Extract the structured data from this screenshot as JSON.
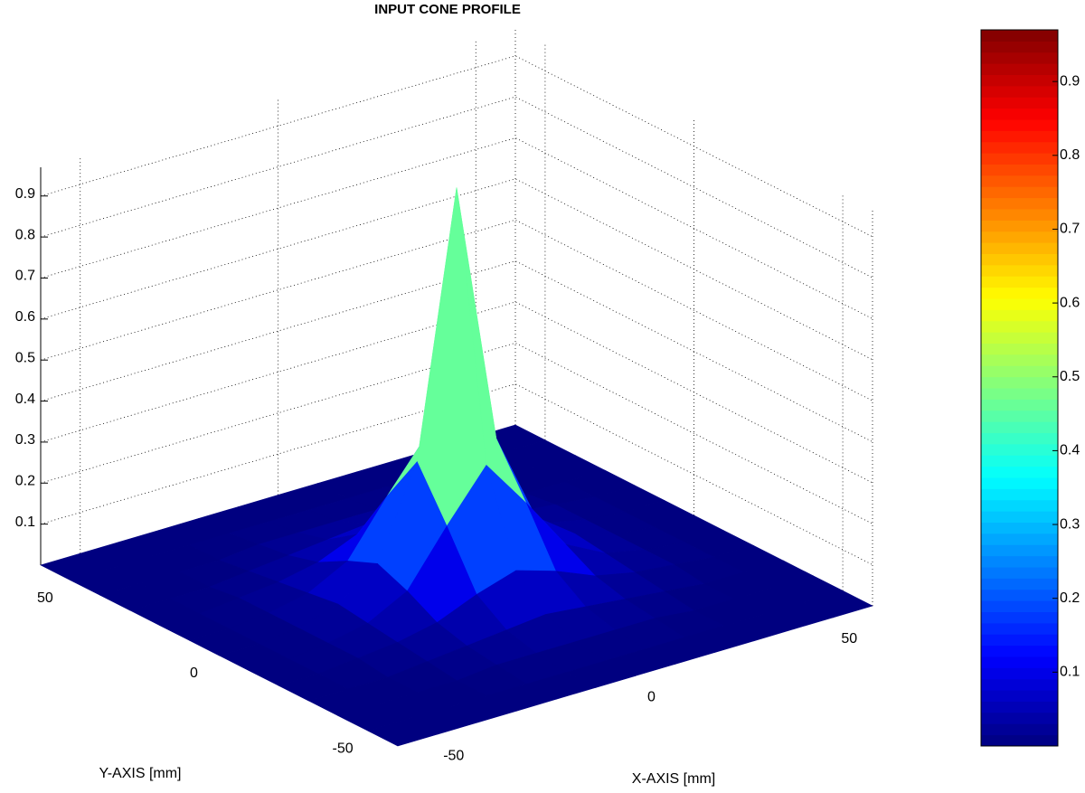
{
  "chart_data": {
    "type": "surface",
    "title": "INPUT CONE PROFILE",
    "x_label": "X-AXIS [mm]",
    "y_label": "Y-AXIS [mm]",
    "x": [
      -60,
      -50,
      -40,
      -30,
      -20,
      -10,
      0,
      10,
      20,
      30,
      40,
      50,
      60
    ],
    "y": [
      -60,
      -50,
      -40,
      -30,
      -20,
      -10,
      0,
      10,
      20,
      30,
      40,
      50,
      60
    ],
    "z": [
      [
        0,
        0,
        0,
        0,
        0,
        0,
        0,
        0,
        0,
        0,
        0,
        0,
        0
      ],
      [
        0,
        0,
        0,
        0,
        0,
        0,
        0,
        0,
        0,
        0,
        0,
        0,
        0
      ],
      [
        0,
        0,
        0,
        0,
        0.01,
        0.01,
        0.01,
        0.01,
        0.01,
        0,
        0,
        0,
        0
      ],
      [
        0,
        0,
        0,
        0.01,
        0.02,
        0.03,
        0.04,
        0.03,
        0.02,
        0.01,
        0,
        0,
        0
      ],
      [
        0,
        0,
        0.01,
        0.02,
        0.04,
        0.08,
        0.11,
        0.08,
        0.04,
        0.02,
        0.01,
        0,
        0
      ],
      [
        0,
        0,
        0.01,
        0.03,
        0.08,
        0.21,
        0.33,
        0.21,
        0.08,
        0.03,
        0.01,
        0,
        0
      ],
      [
        0,
        0,
        0.01,
        0.04,
        0.11,
        0.33,
        0.97,
        0.33,
        0.11,
        0.04,
        0.01,
        0,
        0
      ],
      [
        0,
        0,
        0.01,
        0.03,
        0.08,
        0.21,
        0.33,
        0.21,
        0.08,
        0.03,
        0.01,
        0,
        0
      ],
      [
        0,
        0,
        0.01,
        0.02,
        0.04,
        0.08,
        0.11,
        0.08,
        0.04,
        0.02,
        0.01,
        0,
        0
      ],
      [
        0,
        0,
        0,
        0.01,
        0.02,
        0.03,
        0.04,
        0.03,
        0.02,
        0.01,
        0,
        0,
        0
      ],
      [
        0,
        0,
        0,
        0,
        0.01,
        0.01,
        0.01,
        0.01,
        0.01,
        0,
        0,
        0,
        0
      ],
      [
        0,
        0,
        0,
        0,
        0,
        0,
        0,
        0,
        0,
        0,
        0,
        0,
        0
      ],
      [
        0,
        0,
        0,
        0,
        0,
        0,
        0,
        0,
        0,
        0,
        0,
        0,
        0
      ]
    ],
    "xlim": [
      -60,
      60
    ],
    "ylim": [
      -60,
      60
    ],
    "zlim": [
      0,
      0.97
    ],
    "xticks": [
      -50,
      0,
      50
    ],
    "yticks": [
      -50,
      0,
      50
    ],
    "zticks": [
      0.1,
      0.2,
      0.3,
      0.4,
      0.5,
      0.6,
      0.7,
      0.8,
      0.9
    ],
    "colormap": "jet",
    "grid": true,
    "colorbar": true
  }
}
